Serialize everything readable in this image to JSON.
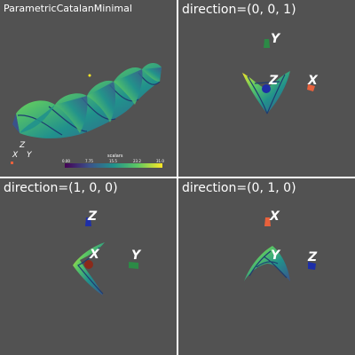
{
  "viewports": [
    {
      "title": "ParametricCatalanMinimal"
    },
    {
      "title": "direction=(0, 0, 1)",
      "axes": [
        "Y",
        "Z",
        "X"
      ]
    },
    {
      "title": "direction=(1, 0, 0)",
      "axes": [
        "Z",
        "X",
        "Y"
      ]
    },
    {
      "title": "direction=(0, 1, 0)",
      "axes": [
        "X",
        "Y",
        "Z"
      ]
    }
  ],
  "orientation_axes": [
    "Z",
    "X",
    "Y"
  ],
  "scalar_bar": {
    "title": "scalars",
    "ticks": [
      "0.00",
      "7.75",
      "15.5",
      "23.2",
      "31.0"
    ],
    "colors": [
      "#440154",
      "#3b528b",
      "#21918c",
      "#5ec962",
      "#fde725"
    ]
  },
  "axis_colors": {
    "x": "#e8613c",
    "y": "#2c8a46",
    "z": "#1d2ea8"
  }
}
